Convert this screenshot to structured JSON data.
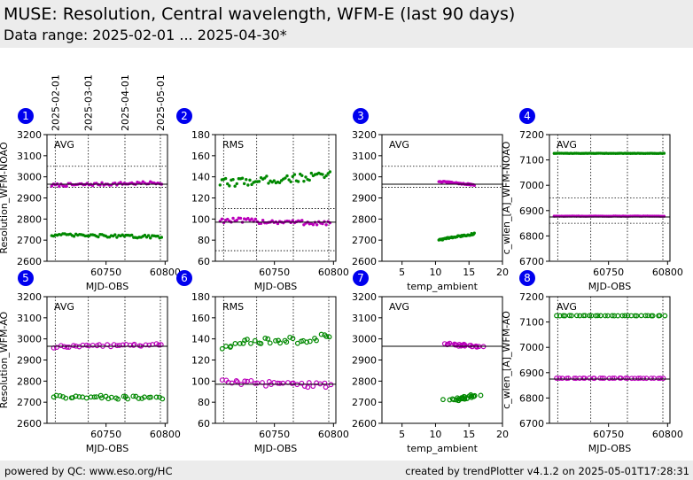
{
  "header": {
    "title": "MUSE: Resolution, Central wavelength, WFM-E (last 90 days)",
    "subtitle": "Data range: 2025-02-01 ... 2025-04-30*"
  },
  "footer": {
    "left": "powered by QC: www.eso.org/HC",
    "right": "created by trendPlotter v4.1.2 on 2025-05-01T17:28:31"
  },
  "date_markers": [
    {
      "label": "2025-02-01",
      "mjd": 60707
    },
    {
      "label": "2025-03-01",
      "mjd": 60735
    },
    {
      "label": "2025-04-01",
      "mjd": 60766
    },
    {
      "label": "2025-05-01",
      "mjd": 60796
    }
  ],
  "colors": {
    "magenta": "#bb00bb",
    "green": "#008800",
    "badge": "#0000ee"
  },
  "chart_data": [
    {
      "panel": "1",
      "type": "scatter",
      "stat_label": "AVG",
      "xlabel": "MJD-OBS",
      "ylabel": "Resolution_WFM-NOAO",
      "xlim": [
        60700,
        60802
      ],
      "ylim": [
        2600,
        3200
      ],
      "xticks": [
        60750,
        60800
      ],
      "yticks": [
        2600,
        2700,
        2800,
        2900,
        3000,
        3100,
        3200
      ],
      "marker": "filled",
      "solid_lines": [
        2965
      ],
      "dotted_lines": [
        3050,
        2950
      ],
      "series": [
        {
          "color": "magenta",
          "x_start": 60704,
          "x_end": 60797,
          "count": 60,
          "y_start": 2960,
          "y_end": 2972,
          "spread": 7
        },
        {
          "color": "green",
          "x_start": 60704,
          "x_end": 60797,
          "count": 60,
          "y_start": 2725,
          "y_end": 2715,
          "spread": 7
        }
      ]
    },
    {
      "panel": "2",
      "type": "scatter",
      "stat_label": "RMS",
      "xlabel": "MJD-OBS",
      "ylabel": "",
      "xlim": [
        60700,
        60802
      ],
      "ylim": [
        60,
        180
      ],
      "xticks": [
        60750,
        60800
      ],
      "yticks": [
        60,
        80,
        100,
        120,
        140,
        160,
        180
      ],
      "marker": "filled",
      "solid_lines": [
        97
      ],
      "dotted_lines": [
        110,
        70
      ],
      "series": [
        {
          "color": "magenta",
          "x_start": 60704,
          "x_end": 60797,
          "count": 60,
          "y_start": 99,
          "y_end": 96,
          "spread": 2.5
        },
        {
          "color": "green",
          "x_start": 60704,
          "x_end": 60797,
          "count": 60,
          "y_start": 134,
          "y_end": 141,
          "spread": 4
        }
      ]
    },
    {
      "panel": "3",
      "type": "scatter",
      "stat_label": "AVG",
      "xlabel": "temp_ambient",
      "ylabel": "",
      "xlim": [
        2,
        20
      ],
      "ylim": [
        2600,
        3200
      ],
      "xticks": [
        5,
        10,
        15,
        20
      ],
      "yticks": [
        2600,
        2700,
        2800,
        2900,
        3000,
        3100,
        3200
      ],
      "marker": "filled",
      "solid_lines": [
        2965
      ],
      "dotted_lines": [
        3050,
        2950
      ],
      "series": [
        {
          "color": "magenta",
          "x_start": 10.5,
          "x_end": 15.8,
          "count": 40,
          "y_start": 2978,
          "y_end": 2962,
          "spread": 3
        },
        {
          "color": "green",
          "x_start": 10.5,
          "x_end": 15.8,
          "count": 40,
          "y_start": 2702,
          "y_end": 2730,
          "spread": 4
        }
      ]
    },
    {
      "panel": "4",
      "type": "scatter",
      "stat_label": "AVG",
      "xlabel": "MJD-OBS",
      "ylabel": "c_wlen_[A]_WFM-NOAO",
      "xlim": [
        60700,
        60802
      ],
      "ylim": [
        6700,
        7200
      ],
      "xticks": [
        60750,
        60800
      ],
      "yticks": [
        6700,
        6800,
        6900,
        7000,
        7100,
        7200
      ],
      "marker": "filled",
      "solid_lines": [
        6875
      ],
      "dotted_lines": [
        6950,
        6850
      ],
      "series": [
        {
          "color": "green",
          "x_start": 60704,
          "x_end": 60797,
          "count": 60,
          "y_start": 7126,
          "y_end": 7126,
          "spread": 0.5
        },
        {
          "color": "magenta",
          "x_start": 60704,
          "x_end": 60797,
          "count": 60,
          "y_start": 6878,
          "y_end": 6878,
          "spread": 0.5
        }
      ]
    },
    {
      "panel": "5",
      "type": "scatter",
      "stat_label": "AVG",
      "xlabel": "MJD-OBS",
      "ylabel": "Resolution_WFM-AO",
      "xlim": [
        60700,
        60802
      ],
      "ylim": [
        2600,
        3200
      ],
      "xticks": [
        60750,
        60800
      ],
      "yticks": [
        2600,
        2700,
        2800,
        2900,
        3000,
        3100,
        3200
      ],
      "marker": "open",
      "solid_lines": [
        2965
      ],
      "dotted_lines": [],
      "series": [
        {
          "color": "magenta",
          "x_start": 60706,
          "x_end": 60797,
          "count": 34,
          "y_start": 2962,
          "y_end": 2974,
          "spread": 6
        },
        {
          "color": "green",
          "x_start": 60706,
          "x_end": 60797,
          "count": 34,
          "y_start": 2728,
          "y_end": 2718,
          "spread": 8
        }
      ]
    },
    {
      "panel": "6",
      "type": "scatter",
      "stat_label": "RMS",
      "xlabel": "MJD-OBS",
      "ylabel": "",
      "xlim": [
        60700,
        60802
      ],
      "ylim": [
        60,
        180
      ],
      "xticks": [
        60750,
        60800
      ],
      "yticks": [
        60,
        80,
        100,
        120,
        140,
        160,
        180
      ],
      "marker": "open",
      "solid_lines": [
        97
      ],
      "dotted_lines": [],
      "series": [
        {
          "color": "magenta",
          "x_start": 60706,
          "x_end": 60797,
          "count": 34,
          "y_start": 99,
          "y_end": 96,
          "spread": 2.5
        },
        {
          "color": "green",
          "x_start": 60706,
          "x_end": 60797,
          "count": 34,
          "y_start": 134,
          "y_end": 141,
          "spread": 4
        }
      ]
    },
    {
      "panel": "7",
      "type": "scatter",
      "stat_label": "AVG",
      "xlabel": "temp_ambient",
      "ylabel": "",
      "xlim": [
        2,
        20
      ],
      "ylim": [
        2600,
        3200
      ],
      "xticks": [
        5,
        10,
        15,
        20
      ],
      "yticks": [
        2600,
        2700,
        2800,
        2900,
        3000,
        3100,
        3200
      ],
      "marker": "open",
      "solid_lines": [
        2965
      ],
      "dotted_lines": [],
      "series": [
        {
          "color": "magenta",
          "x_start": 12.2,
          "x_end": 16.0,
          "count": 28,
          "y_start": 2978,
          "y_end": 2962,
          "spread": 3
        },
        {
          "color": "green",
          "x_start": 12.2,
          "x_end": 16.0,
          "count": 28,
          "y_start": 2708,
          "y_end": 2732,
          "spread": 4
        }
      ]
    },
    {
      "panel": "8",
      "type": "scatter",
      "stat_label": "AVG",
      "xlabel": "MJD-OBS",
      "ylabel": "c_wlen_[A]_WFM-AO",
      "xlim": [
        60700,
        60802
      ],
      "ylim": [
        6700,
        7200
      ],
      "xticks": [
        60750,
        60800
      ],
      "yticks": [
        6700,
        6800,
        6900,
        7000,
        7100,
        7200
      ],
      "marker": "open",
      "solid_lines": [
        6875
      ],
      "dotted_lines": [],
      "series": [
        {
          "color": "green",
          "x_start": 60706,
          "x_end": 60797,
          "count": 34,
          "y_start": 7125,
          "y_end": 7125,
          "spread": 0.5
        },
        {
          "color": "magenta",
          "x_start": 60706,
          "x_end": 60797,
          "count": 34,
          "y_start": 6878,
          "y_end": 6878,
          "spread": 0.5
        }
      ]
    }
  ]
}
